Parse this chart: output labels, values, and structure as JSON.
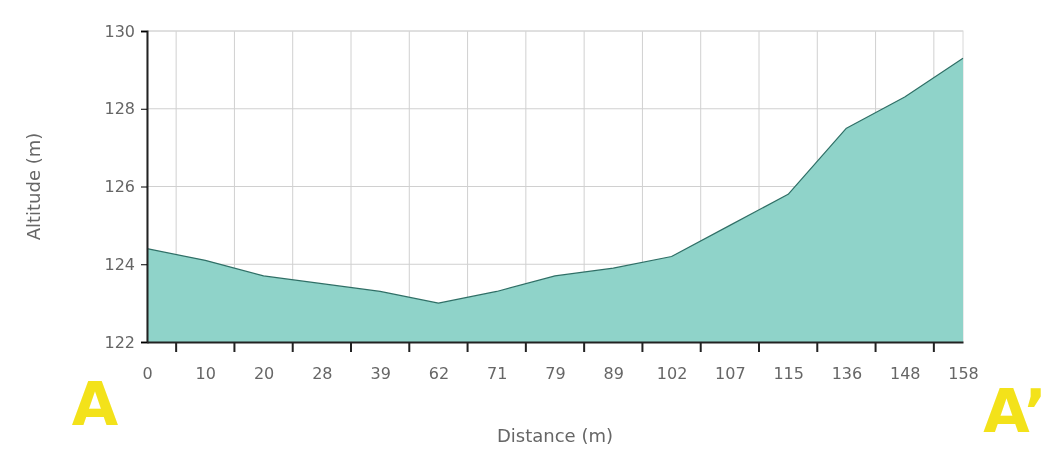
{
  "chart_data": {
    "type": "area",
    "xlabel": "Distance (m)",
    "ylabel": "Altitude (m)",
    "categories": [
      "0",
      "10",
      "20",
      "28",
      "39",
      "62",
      "71",
      "79",
      "89",
      "102",
      "107",
      "115",
      "136",
      "148",
      "158"
    ],
    "series": [
      {
        "color": "#8fd3c9",
        "values": [
          124.4,
          124.1,
          123.7,
          123.5,
          123.3,
          123.0,
          123.3,
          123.7,
          123.9,
          124.2,
          125.0,
          125.8,
          127.5,
          128.3,
          129.3
        ]
      }
    ],
    "ylim": [
      122,
      130
    ],
    "yticks": [
      122,
      124,
      126,
      128,
      130
    ],
    "grid": true,
    "annotations": [
      "A",
      "A’"
    ]
  }
}
